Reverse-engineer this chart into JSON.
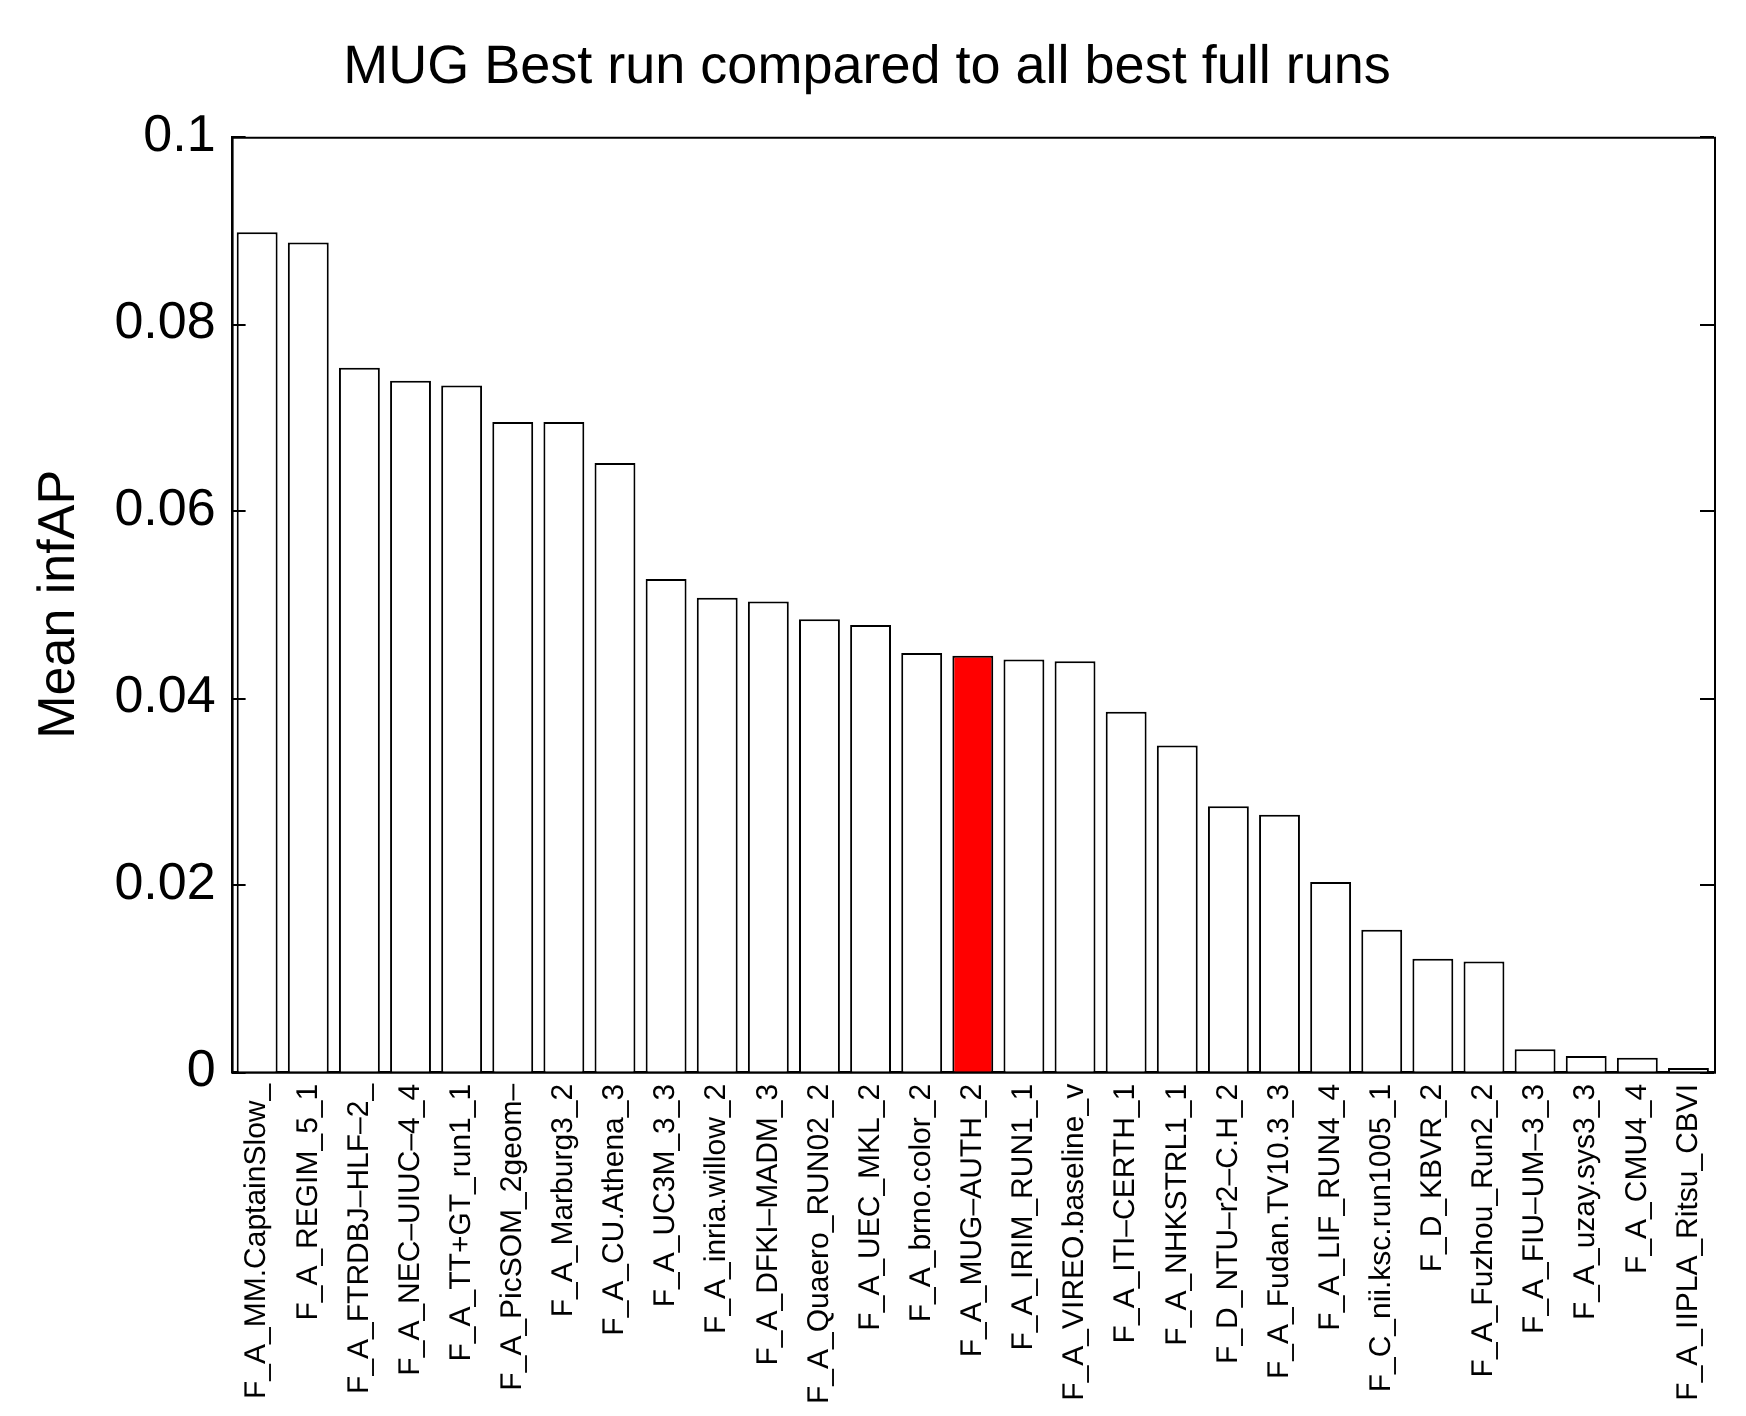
{
  "chart_data": {
    "type": "bar",
    "title": "MUG Best run compared to all best full runs",
    "ylabel": "Mean infAP",
    "categories": [
      "F_A_MM.CaptainSlow_",
      "F_A_REGIM_5_1",
      "F_A_FTRDBJ–HLF–2_",
      "F_A_NEC–UIUC–4_4",
      "F_A_TT+GT_run1_1",
      "F_A_PicSOM_2geom–",
      "F_A_Marburg3_2",
      "F_A_CU.Athena_3",
      "F_A_UC3M_3_3",
      "F_A_inria.willow_2",
      "F_A_DFKI–MADM_3",
      "F_A_Quaero_RUN02_2",
      "F_A_UEC_MKL_2",
      "F_A_brno.color_2",
      "F_A_MUG–AUTH_2",
      "F_A_IRIM_RUN1_1",
      "F_A_VIREO.baseline_v",
      "F_A_ITI–CERTH_1",
      "F_A_NHKSTRL1_1",
      "F_D_NTU–r2–C.H_2",
      "F_A_Fudan.TV10.3_3",
      "F_A_LIF_RUN4_4",
      "F_C_nii.ksc.run1005_1",
      "F_D_KBVR_2",
      "F_A_Fuzhou_Run2_2",
      "F_A_FIU–UM–3_3",
      "F_A_uzay.sys3_3",
      "F_A_CMU4_4",
      "F_A_IIPLA_Ritsu_CBVI"
    ],
    "values": [
      0.0898,
      0.0887,
      0.0753,
      0.0739,
      0.0734,
      0.0695,
      0.0695,
      0.0651,
      0.0527,
      0.0507,
      0.0503,
      0.0484,
      0.0478,
      0.0448,
      0.0445,
      0.0441,
      0.0439,
      0.0385,
      0.0349,
      0.0284,
      0.0275,
      0.0203,
      0.0152,
      0.0121,
      0.0118,
      0.0024,
      0.0017,
      0.0015,
      0.0004
    ],
    "colors": [
      "#ffffff",
      "#ffffff",
      "#ffffff",
      "#ffffff",
      "#ffffff",
      "#ffffff",
      "#ffffff",
      "#ffffff",
      "#ffffff",
      "#ffffff",
      "#ffffff",
      "#ffffff",
      "#ffffff",
      "#ffffff",
      "#ff0000",
      "#ffffff",
      "#ffffff",
      "#ffffff",
      "#ffffff",
      "#ffffff",
      "#ffffff",
      "#ffffff",
      "#ffffff",
      "#ffffff",
      "#ffffff",
      "#ffffff",
      "#ffffff",
      "#ffffff",
      "#ffffff"
    ],
    "ylim": [
      0,
      0.1
    ],
    "yticks": [
      0,
      0.02,
      0.04,
      0.06,
      0.08,
      0.1
    ],
    "grid": false,
    "legend": false
  }
}
